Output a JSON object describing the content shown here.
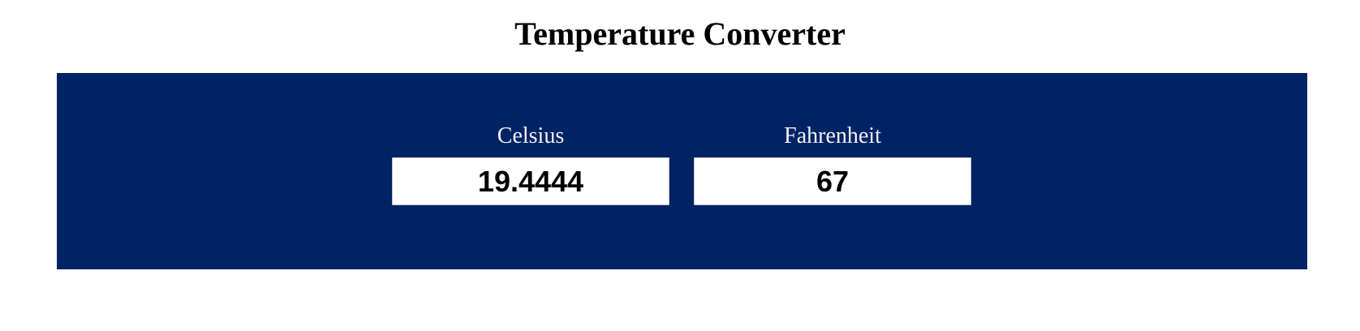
{
  "page": {
    "title": "Temperature Converter"
  },
  "converter": {
    "celsius": {
      "label": "Celsius",
      "value": "19.4444"
    },
    "fahrenheit": {
      "label": "Fahrenheit",
      "value": "67"
    }
  },
  "colors": {
    "panel_background": "#002366",
    "label_text": "#f2f2f2",
    "input_background": "#ffffff"
  }
}
